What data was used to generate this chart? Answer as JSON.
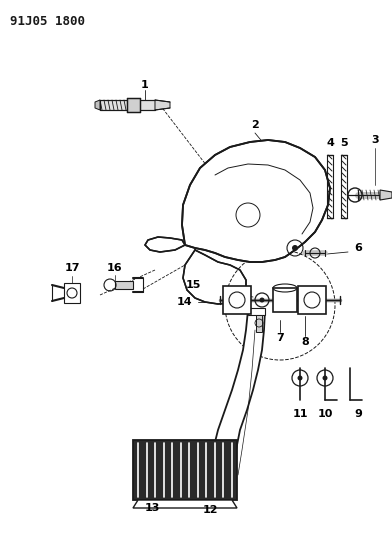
{
  "title": "91J05 1800",
  "bg_color": "#ffffff",
  "line_color": "#1a1a1a",
  "title_fontsize": 9,
  "label_fontsize": 8,
  "fig_w": 3.92,
  "fig_h": 5.33,
  "dpi": 100
}
